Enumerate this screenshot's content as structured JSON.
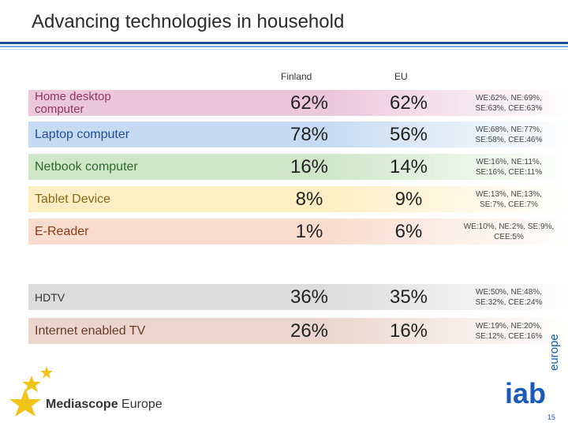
{
  "title": "Advancing technologies in household",
  "columns": {
    "finland": "Finland",
    "eu": "EU"
  },
  "colors": {
    "accent": "#1f4e9a",
    "iab_blue": "#1a5ab8"
  },
  "rows": [
    {
      "label": "Home desktop computer",
      "finland": "62%",
      "eu": "62%",
      "regions": "WE:62%, NE:69%, SE:63%, CEE:63%",
      "color": "#ecc6d9",
      "label_color": "#8b3a5c"
    },
    {
      "label": "Laptop computer",
      "finland": "78%",
      "eu": "56%",
      "regions": "WE:68%, NE:77%, SE:58%, CEE:46%",
      "color": "#c6dbf1",
      "label_color": "#1f4e9a"
    },
    {
      "label": "Netbook computer",
      "finland": "16%",
      "eu": "14%",
      "regions": "WE:16%, NE:11%, SE:16%, CEE:11%",
      "color": "#cfe6c9",
      "label_color": "#2e6b2a"
    },
    {
      "label": "Tablet Device",
      "finland": "8%",
      "eu": "9%",
      "regions": "WE:13%, NE:13%, SE:7%, CEE:7%",
      "color": "#fdeec3",
      "label_color": "#8a6a1a"
    },
    {
      "label": "E-Reader",
      "finland": "1%",
      "eu": "6%",
      "regions": "WE:10%, NE:2%, SE:9%, CEE:5%",
      "color": "#f8dccd",
      "label_color": "#8b3a1a"
    },
    {
      "label": "HDTV",
      "finland": "36%",
      "eu": "35%",
      "regions": "WE:50%, NE:48%, SE:32%, CEE:24%",
      "color": "#dcdcdc",
      "label_color": "#333333"
    },
    {
      "label": "Internet enabled TV",
      "finland": "26%",
      "eu": "16%",
      "regions": "WE:19%, NE:20%, SE:12%, CEE:16%",
      "color": "#ead6cd",
      "label_color": "#6b3a2a"
    }
  ],
  "footer": {
    "logo_bold": "Mediascope",
    "logo_regular": " Europe",
    "iab": "iab",
    "iab_suffix": "europe",
    "page_number": "15"
  }
}
